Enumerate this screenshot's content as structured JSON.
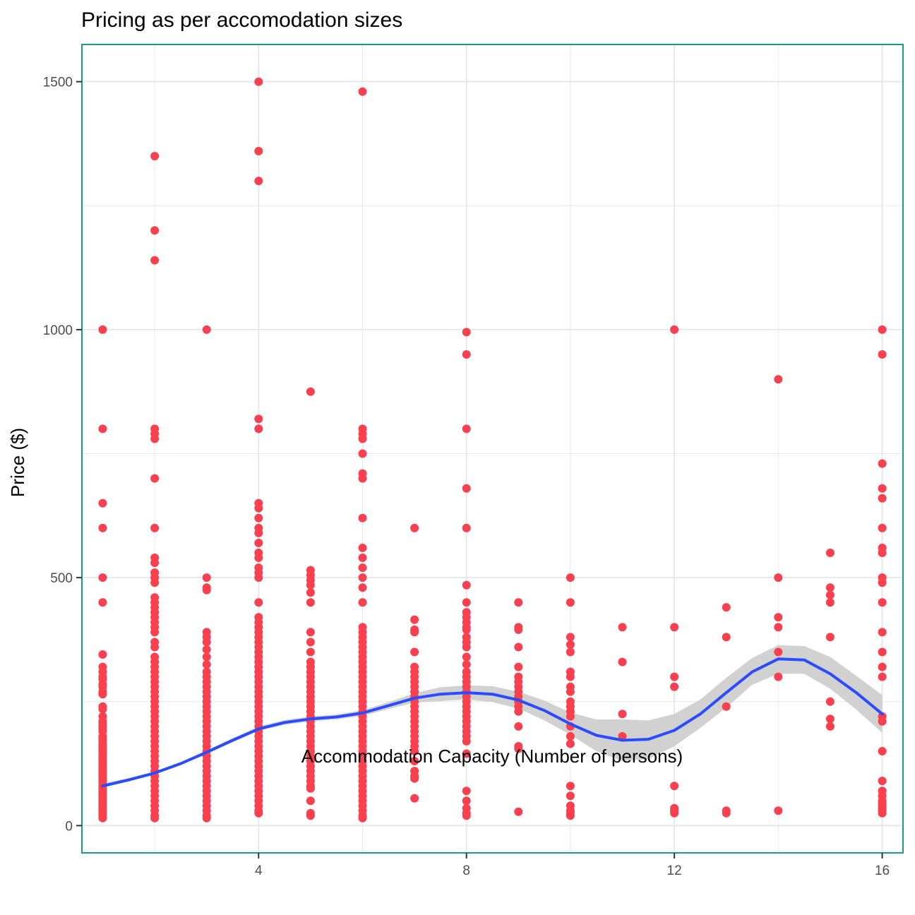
{
  "chart_data": {
    "type": "scatter",
    "title": "Pricing as per accomodation sizes",
    "xlabel": "Accommodation Capacity (Number of persons)",
    "ylabel": "Price ($)",
    "xlim": [
      0.6,
      16.4
    ],
    "ylim": [
      -55,
      1575
    ],
    "x_ticks": [
      4,
      8,
      12,
      16
    ],
    "y_ticks": [
      0,
      500,
      1000,
      1500
    ],
    "grid": true,
    "legend": "none",
    "colors": {
      "points": "#f8404f",
      "smooth_line": "#2b4bff",
      "confidence_band": "#cccccc",
      "panel_border": "#1a9985",
      "grid": "#e8e8e8"
    },
    "points": [
      {
        "x": 1,
        "y": [
          1000,
          800,
          650,
          600,
          500,
          450,
          345,
          320,
          310,
          300,
          295,
          285,
          280,
          270,
          265,
          240,
          235,
          220,
          210,
          205,
          200,
          195,
          190,
          180,
          175,
          170,
          165,
          160,
          155,
          150,
          145,
          140,
          135,
          130,
          125,
          120,
          115,
          110,
          105,
          100,
          95,
          90,
          85,
          80,
          75,
          70,
          65,
          60,
          55,
          50,
          45,
          40,
          35,
          30,
          25,
          20,
          15
        ]
      },
      {
        "x": 2,
        "y": [
          1350,
          1200,
          1140,
          800,
          790,
          780,
          700,
          600,
          540,
          530,
          510,
          500,
          490,
          460,
          450,
          440,
          430,
          420,
          410,
          400,
          390,
          370,
          360,
          340,
          330,
          320,
          310,
          300,
          290,
          280,
          270,
          260,
          250,
          240,
          230,
          220,
          210,
          200,
          190,
          180,
          170,
          160,
          150,
          140,
          130,
          120,
          110,
          100,
          90,
          80,
          70,
          60,
          50,
          40,
          30,
          20,
          15
        ]
      },
      {
        "x": 3,
        "y": [
          1000,
          500,
          480,
          475,
          390,
          380,
          370,
          355,
          340,
          325,
          310,
          300,
          290,
          280,
          270,
          260,
          250,
          240,
          230,
          220,
          210,
          200,
          190,
          180,
          170,
          160,
          150,
          140,
          130,
          120,
          110,
          100,
          90,
          80,
          70,
          60,
          50,
          40,
          30,
          20,
          15
        ]
      },
      {
        "x": 4,
        "y": [
          1500,
          1360,
          1300,
          820,
          800,
          650,
          640,
          620,
          600,
          590,
          570,
          550,
          540,
          520,
          510,
          500,
          450,
          420,
          410,
          400,
          390,
          380,
          370,
          360,
          350,
          340,
          330,
          320,
          310,
          300,
          290,
          280,
          270,
          260,
          250,
          240,
          230,
          220,
          210,
          200,
          190,
          180,
          170,
          160,
          150,
          140,
          130,
          120,
          110,
          100,
          90,
          80,
          70,
          60,
          50,
          40,
          30,
          25
        ]
      },
      {
        "x": 5,
        "y": [
          875,
          515,
          505,
          495,
          485,
          470,
          450,
          390,
          370,
          350,
          330,
          320,
          310,
          300,
          290,
          280,
          270,
          260,
          250,
          240,
          230,
          220,
          210,
          200,
          190,
          180,
          170,
          160,
          150,
          140,
          130,
          120,
          110,
          100,
          90,
          80,
          75,
          50,
          25,
          20
        ]
      },
      {
        "x": 6,
        "y": [
          1480,
          800,
          790,
          780,
          750,
          710,
          700,
          620,
          560,
          540,
          520,
          500,
          480,
          450,
          400,
          390,
          380,
          370,
          360,
          350,
          340,
          330,
          320,
          310,
          300,
          290,
          280,
          270,
          260,
          250,
          240,
          230,
          220,
          210,
          200,
          190,
          180,
          170,
          160,
          150,
          140,
          130,
          120,
          110,
          100,
          90,
          80,
          70,
          60,
          50,
          40,
          30,
          20,
          15
        ]
      },
      {
        "x": 7,
        "y": [
          600,
          415,
          395,
          390,
          350,
          320,
          310,
          300,
          290,
          280,
          270,
          260,
          250,
          240,
          230,
          220,
          210,
          200,
          190,
          180,
          170,
          160,
          150,
          130,
          110,
          100,
          95,
          55
        ]
      },
      {
        "x": 8,
        "y": [
          995,
          950,
          800,
          680,
          600,
          485,
          450,
          430,
          420,
          410,
          400,
          395,
          380,
          370,
          360,
          340,
          325,
          310,
          300,
          290,
          280,
          270,
          260,
          250,
          240,
          230,
          220,
          210,
          200,
          190,
          180,
          170,
          145,
          70,
          50,
          35,
          25,
          20
        ]
      },
      {
        "x": 9,
        "y": [
          450,
          400,
          395,
          360,
          320,
          300,
          290,
          280,
          270,
          260,
          250,
          240,
          230,
          200,
          160,
          155,
          28
        ]
      },
      {
        "x": 10,
        "y": [
          500,
          450,
          380,
          365,
          350,
          310,
          300,
          280,
          270,
          250,
          240,
          230,
          220,
          200,
          180,
          165,
          80,
          60,
          40,
          30,
          25,
          20
        ]
      },
      {
        "x": 11,
        "y": [
          400,
          330,
          225,
          180
        ]
      },
      {
        "x": 12,
        "y": [
          1000,
          400,
          300,
          280,
          80,
          35,
          30,
          25
        ]
      },
      {
        "x": 13,
        "y": [
          440,
          380,
          240,
          30,
          25
        ]
      },
      {
        "x": 14,
        "y": [
          900,
          500,
          420,
          400,
          350,
          300,
          30
        ]
      },
      {
        "x": 15,
        "y": [
          550,
          480,
          465,
          450,
          380,
          250,
          215,
          200
        ]
      },
      {
        "x": 16,
        "y": [
          1000,
          950,
          730,
          680,
          660,
          600,
          560,
          550,
          500,
          490,
          450,
          390,
          350,
          320,
          300,
          220,
          210,
          150,
          90,
          70,
          60,
          50,
          45,
          40,
          35,
          30,
          25
        ]
      }
    ],
    "smooth": {
      "x": [
        1,
        1.5,
        2,
        2.5,
        3,
        3.5,
        4,
        4.5,
        5,
        5.5,
        6,
        6.5,
        7,
        7.5,
        8,
        8.5,
        9,
        9.5,
        10,
        10.5,
        11,
        11.5,
        12,
        12.5,
        13,
        13.5,
        14,
        14.5,
        15,
        15.5,
        16
      ],
      "y": [
        80,
        92,
        106,
        125,
        148,
        172,
        195,
        208,
        215,
        219,
        227,
        242,
        257,
        265,
        268,
        265,
        253,
        232,
        205,
        182,
        172,
        174,
        192,
        225,
        268,
        310,
        336,
        334,
        306,
        268,
        225
      ],
      "lower": [
        76,
        89,
        103,
        122,
        144,
        168,
        191,
        203,
        210,
        214,
        221,
        235,
        248,
        251,
        254,
        249,
        236,
        212,
        183,
        150,
        130,
        134,
        160,
        197,
        238,
        284,
        306,
        306,
        276,
        234,
        187
      ],
      "upper": [
        85,
        96,
        109,
        128,
        151,
        176,
        200,
        213,
        220,
        224,
        233,
        249,
        267,
        279,
        283,
        281,
        270,
        252,
        228,
        214,
        214,
        212,
        225,
        254,
        298,
        338,
        364,
        362,
        340,
        302,
        263
      ]
    }
  }
}
